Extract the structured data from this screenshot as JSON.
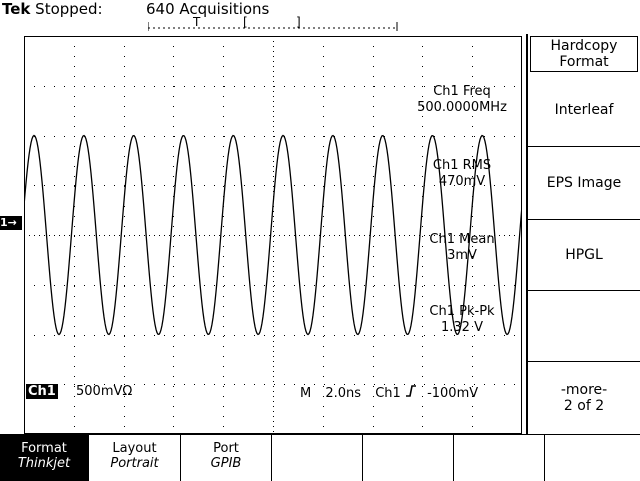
{
  "status": {
    "brand": "Tek",
    "state": "Stopped:",
    "acquisitions": "640 Acquisitions"
  },
  "trigger_bar": {
    "trigger_label": "T",
    "left_bracket": "[",
    "right_bracket": "]"
  },
  "channel_marker": "1→",
  "measurements": [
    {
      "label": "Ch1 Freq",
      "value": "500.0000MHz"
    },
    {
      "label": "Ch1 RMS",
      "value": "470mV"
    },
    {
      "label": "Ch1 Mean",
      "value": "3mV"
    },
    {
      "label": "Ch1 Pk-Pk",
      "value": "1.32 V"
    }
  ],
  "readout": {
    "channel": "Ch1",
    "scale": "500mVΩ",
    "mode": "M",
    "timebase": "2.0ns",
    "trigger_channel": "Ch1",
    "trigger_slope_icon": "rising-edge-icon",
    "trigger_level": "-100mV"
  },
  "side_menu": {
    "title": "Hardcopy Format",
    "items": [
      {
        "label": "Interleaf"
      },
      {
        "label": "EPS Image"
      },
      {
        "label": "HPGL"
      },
      {
        "label": ""
      },
      {
        "label": "-more-",
        "sub": "2 of 2"
      }
    ]
  },
  "bottom_menu": [
    {
      "label": "Format",
      "value": "Thinkjet",
      "selected": true
    },
    {
      "label": "Layout",
      "value": "Portrait",
      "selected": false
    },
    {
      "label": "Port",
      "value": "GPIB",
      "selected": false
    },
    {
      "label": "",
      "value": "",
      "selected": false
    },
    {
      "label": "",
      "value": "",
      "selected": false
    },
    {
      "label": "",
      "value": "",
      "selected": false
    },
    {
      "label": "",
      "value": "",
      "selected": false
    }
  ],
  "waveform": {
    "cycles": 10,
    "amplitude_fraction": 0.25
  }
}
